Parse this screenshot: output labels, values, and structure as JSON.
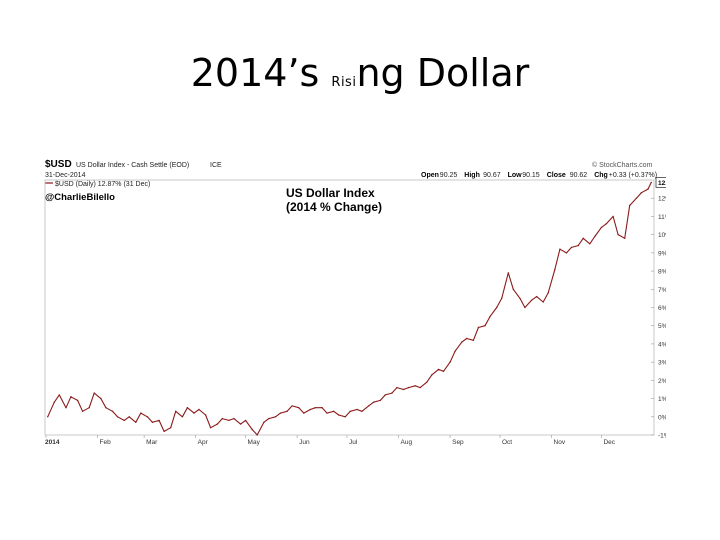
{
  "slide": {
    "title_part1": "2014’s ",
    "title_part2": "Risi",
    "title_part3": "ng Dollar"
  },
  "chart_header": {
    "symbol": "$USD",
    "description": "US Dollar Index - Cash Settle (EOD)",
    "exchange": "ICE",
    "date": "31-Dec-2014",
    "legend": "$USD (Daily) 12.87% (31 Dec)",
    "author": "@CharlieBilello",
    "source": "© StockCharts.com",
    "quote": [
      {
        "label": "Open",
        "value": "90.25"
      },
      {
        "label": "High",
        "value": "90.67"
      },
      {
        "label": "Low",
        "value": "90.15"
      },
      {
        "label": "Close",
        "value": "90.62"
      },
      {
        "label": "Chg",
        "value": "+0.33 (+0.37%)"
      }
    ]
  },
  "chart_data": {
    "type": "line",
    "title": "US Dollar Index",
    "subtitle": "(2014 % Change)",
    "xlabel": "",
    "ylabel": "",
    "ylim": [
      -1,
      13
    ],
    "last_value_label": "12.87%",
    "x_tick_labels": [
      "2014",
      "Feb",
      "Mar",
      "Apr",
      "May",
      "Jun",
      "Jul",
      "Aug",
      "Sep",
      "Oct",
      "Nov",
      "Dec"
    ],
    "y_tick_labels": [
      "-1%",
      "0%",
      "1%",
      "2%",
      "3%",
      "4%",
      "5%",
      "6%",
      "7%",
      "8%",
      "9%",
      "10%",
      "11%",
      "12%"
    ],
    "y_ticks": [
      -1,
      0,
      1,
      2,
      3,
      4,
      5,
      6,
      7,
      8,
      9,
      10,
      11,
      12
    ],
    "series": [
      {
        "color": "#8b1a1a",
        "points": [
          [
            "2014-01-02",
            0.0
          ],
          [
            "2014-01-06",
            0.8
          ],
          [
            "2014-01-09",
            1.2
          ],
          [
            "2014-01-13",
            0.5
          ],
          [
            "2014-01-16",
            1.1
          ],
          [
            "2014-01-20",
            0.9
          ],
          [
            "2014-01-23",
            0.3
          ],
          [
            "2014-01-27",
            0.5
          ],
          [
            "2014-01-30",
            1.3
          ],
          [
            "2014-02-03",
            1.0
          ],
          [
            "2014-02-06",
            0.5
          ],
          [
            "2014-02-10",
            0.3
          ],
          [
            "2014-02-13",
            0.0
          ],
          [
            "2014-02-17",
            -0.2
          ],
          [
            "2014-02-20",
            0.0
          ],
          [
            "2014-02-24",
            -0.3
          ],
          [
            "2014-02-27",
            0.2
          ],
          [
            "2014-03-03",
            0.0
          ],
          [
            "2014-03-06",
            -0.3
          ],
          [
            "2014-03-10",
            -0.2
          ],
          [
            "2014-03-13",
            -0.8
          ],
          [
            "2014-03-17",
            -0.6
          ],
          [
            "2014-03-20",
            0.3
          ],
          [
            "2014-03-24",
            0.0
          ],
          [
            "2014-03-27",
            0.5
          ],
          [
            "2014-03-31",
            0.2
          ],
          [
            "2014-04-03",
            0.4
          ],
          [
            "2014-04-07",
            0.1
          ],
          [
            "2014-04-10",
            -0.6
          ],
          [
            "2014-04-14",
            -0.4
          ],
          [
            "2014-04-17",
            -0.1
          ],
          [
            "2014-04-21",
            -0.2
          ],
          [
            "2014-04-24",
            -0.1
          ],
          [
            "2014-04-28",
            -0.4
          ],
          [
            "2014-05-01",
            -0.2
          ],
          [
            "2014-05-05",
            -0.7
          ],
          [
            "2014-05-08",
            -1.0
          ],
          [
            "2014-05-12",
            -0.3
          ],
          [
            "2014-05-15",
            -0.1
          ],
          [
            "2014-05-19",
            0.0
          ],
          [
            "2014-05-22",
            0.2
          ],
          [
            "2014-05-26",
            0.3
          ],
          [
            "2014-05-29",
            0.6
          ],
          [
            "2014-06-02",
            0.5
          ],
          [
            "2014-06-05",
            0.2
          ],
          [
            "2014-06-09",
            0.4
          ],
          [
            "2014-06-12",
            0.5
          ],
          [
            "2014-06-16",
            0.5
          ],
          [
            "2014-06-19",
            0.2
          ],
          [
            "2014-06-23",
            0.3
          ],
          [
            "2014-06-26",
            0.1
          ],
          [
            "2014-06-30",
            0.0
          ],
          [
            "2014-07-03",
            0.3
          ],
          [
            "2014-07-07",
            0.4
          ],
          [
            "2014-07-10",
            0.3
          ],
          [
            "2014-07-14",
            0.6
          ],
          [
            "2014-07-17",
            0.8
          ],
          [
            "2014-07-21",
            0.9
          ],
          [
            "2014-07-24",
            1.2
          ],
          [
            "2014-07-28",
            1.3
          ],
          [
            "2014-07-31",
            1.6
          ],
          [
            "2014-08-04",
            1.5
          ],
          [
            "2014-08-07",
            1.6
          ],
          [
            "2014-08-11",
            1.7
          ],
          [
            "2014-08-14",
            1.6
          ],
          [
            "2014-08-18",
            1.9
          ],
          [
            "2014-08-21",
            2.3
          ],
          [
            "2014-08-25",
            2.6
          ],
          [
            "2014-08-28",
            2.5
          ],
          [
            "2014-09-01",
            3.0
          ],
          [
            "2014-09-04",
            3.6
          ],
          [
            "2014-09-08",
            4.1
          ],
          [
            "2014-09-11",
            4.3
          ],
          [
            "2014-09-15",
            4.2
          ],
          [
            "2014-09-18",
            4.9
          ],
          [
            "2014-09-22",
            5.0
          ],
          [
            "2014-09-25",
            5.5
          ],
          [
            "2014-09-29",
            6.0
          ],
          [
            "2014-10-02",
            6.5
          ],
          [
            "2014-10-06",
            7.9
          ],
          [
            "2014-10-09",
            7.0
          ],
          [
            "2014-10-13",
            6.5
          ],
          [
            "2014-10-16",
            6.0
          ],
          [
            "2014-10-20",
            6.4
          ],
          [
            "2014-10-23",
            6.6
          ],
          [
            "2014-10-27",
            6.3
          ],
          [
            "2014-10-30",
            6.8
          ],
          [
            "2014-11-03",
            8.1
          ],
          [
            "2014-11-06",
            9.2
          ],
          [
            "2014-11-10",
            9.0
          ],
          [
            "2014-11-13",
            9.3
          ],
          [
            "2014-11-17",
            9.4
          ],
          [
            "2014-11-20",
            9.8
          ],
          [
            "2014-11-24",
            9.5
          ],
          [
            "2014-11-27",
            9.9
          ],
          [
            "2014-12-01",
            10.4
          ],
          [
            "2014-12-04",
            10.6
          ],
          [
            "2014-12-08",
            11.0
          ],
          [
            "2014-12-11",
            10.0
          ],
          [
            "2014-12-15",
            9.8
          ],
          [
            "2014-12-18",
            11.6
          ],
          [
            "2014-12-22",
            12.0
          ],
          [
            "2014-12-25",
            12.3
          ],
          [
            "2014-12-29",
            12.5
          ],
          [
            "2014-12-31",
            12.87
          ]
        ]
      }
    ],
    "grid": false,
    "legend_position": "top-left"
  }
}
